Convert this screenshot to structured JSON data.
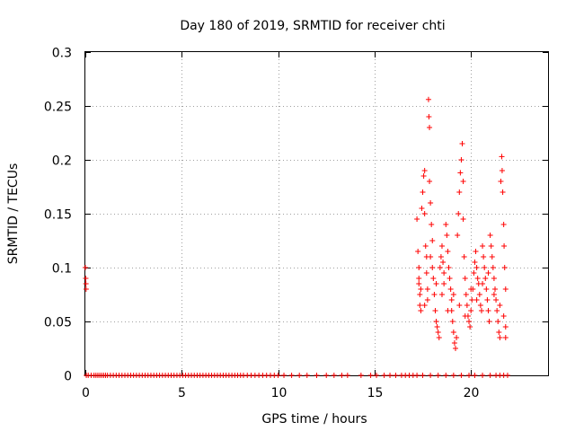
{
  "chart_data": {
    "type": "scatter",
    "title": "Day 180 of 2019, SRMTID for receiver chti",
    "xlabel": "GPS time / hours",
    "ylabel": "SRMTID / TECUs",
    "xlim": [
      0,
      24
    ],
    "ylim": [
      0,
      0.3
    ],
    "xticks": [
      0,
      5,
      10,
      15,
      20
    ],
    "xtick_labels": [
      "0",
      "5",
      "10",
      "15",
      "20"
    ],
    "yticks": [
      0,
      0.05,
      0.1,
      0.15,
      0.2,
      0.25,
      0.3
    ],
    "ytick_labels": [
      "0",
      "0.05",
      "0.1",
      "0.15",
      "0.2",
      "0.25",
      "0.3"
    ],
    "grid": true,
    "marker": "+",
    "color": "#ff0000",
    "series": [
      {
        "name": "SRMTID",
        "points": [
          [
            0.0,
            0.1
          ],
          [
            0.02,
            0.09
          ],
          [
            0.03,
            0.085
          ],
          [
            0.04,
            0.08
          ],
          [
            0.05,
            0.0
          ],
          [
            0.15,
            0.0
          ],
          [
            0.3,
            0.0
          ],
          [
            0.45,
            0.0
          ],
          [
            0.55,
            0.0
          ],
          [
            0.65,
            0.0
          ],
          [
            0.75,
            0.0
          ],
          [
            0.85,
            0.0
          ],
          [
            0.95,
            0.0
          ],
          [
            1.05,
            0.0
          ],
          [
            1.15,
            0.0
          ],
          [
            1.3,
            0.0
          ],
          [
            1.45,
            0.0
          ],
          [
            1.6,
            0.0
          ],
          [
            1.75,
            0.0
          ],
          [
            1.9,
            0.0
          ],
          [
            2.05,
            0.0
          ],
          [
            2.2,
            0.0
          ],
          [
            2.35,
            0.0
          ],
          [
            2.5,
            0.0
          ],
          [
            2.65,
            0.0
          ],
          [
            2.8,
            0.0
          ],
          [
            2.95,
            0.0
          ],
          [
            3.1,
            0.0
          ],
          [
            3.25,
            0.0
          ],
          [
            3.4,
            0.0
          ],
          [
            3.55,
            0.0
          ],
          [
            3.7,
            0.0
          ],
          [
            3.85,
            0.0
          ],
          [
            4.0,
            0.0
          ],
          [
            4.15,
            0.0
          ],
          [
            4.3,
            0.0
          ],
          [
            4.45,
            0.0
          ],
          [
            4.6,
            0.0
          ],
          [
            4.75,
            0.0
          ],
          [
            4.9,
            0.0
          ],
          [
            5.05,
            0.0
          ],
          [
            5.2,
            0.0
          ],
          [
            5.35,
            0.0
          ],
          [
            5.5,
            0.0
          ],
          [
            5.65,
            0.0
          ],
          [
            5.8,
            0.0
          ],
          [
            5.95,
            0.0
          ],
          [
            6.1,
            0.0
          ],
          [
            6.25,
            0.0
          ],
          [
            6.4,
            0.0
          ],
          [
            6.55,
            0.0
          ],
          [
            6.7,
            0.0
          ],
          [
            6.85,
            0.0
          ],
          [
            7.0,
            0.0
          ],
          [
            7.15,
            0.0
          ],
          [
            7.3,
            0.0
          ],
          [
            7.45,
            0.0
          ],
          [
            7.6,
            0.0
          ],
          [
            7.75,
            0.0
          ],
          [
            7.9,
            0.0
          ],
          [
            8.05,
            0.0
          ],
          [
            8.2,
            0.0
          ],
          [
            8.4,
            0.0
          ],
          [
            8.6,
            0.0
          ],
          [
            8.8,
            0.0
          ],
          [
            9.0,
            0.0
          ],
          [
            9.2,
            0.0
          ],
          [
            9.4,
            0.0
          ],
          [
            9.6,
            0.0
          ],
          [
            9.8,
            0.0
          ],
          [
            10.0,
            0.0
          ],
          [
            10.3,
            0.0
          ],
          [
            10.7,
            0.0
          ],
          [
            11.1,
            0.0
          ],
          [
            11.5,
            0.0
          ],
          [
            12.0,
            0.0
          ],
          [
            12.5,
            0.0
          ],
          [
            12.9,
            0.0
          ],
          [
            13.3,
            0.0
          ],
          [
            13.6,
            0.0
          ],
          [
            14.3,
            0.0
          ],
          [
            14.8,
            0.0
          ],
          [
            15.1,
            0.0
          ],
          [
            15.5,
            0.0
          ],
          [
            15.8,
            0.0
          ],
          [
            16.1,
            0.0
          ],
          [
            16.4,
            0.0
          ],
          [
            16.6,
            0.0
          ],
          [
            16.8,
            0.0
          ],
          [
            17.0,
            0.0
          ],
          [
            17.2,
            0.0
          ],
          [
            17.5,
            0.0
          ],
          [
            17.9,
            0.0
          ],
          [
            18.3,
            0.0
          ],
          [
            18.7,
            0.0
          ],
          [
            19.1,
            0.0
          ],
          [
            19.5,
            0.0
          ],
          [
            19.9,
            0.0
          ],
          [
            20.2,
            0.0
          ],
          [
            20.6,
            0.0
          ],
          [
            21.0,
            0.0
          ],
          [
            21.3,
            0.0
          ],
          [
            21.5,
            0.0
          ],
          [
            21.7,
            0.0
          ],
          [
            21.9,
            0.0
          ],
          [
            17.2,
            0.145
          ],
          [
            17.25,
            0.115
          ],
          [
            17.3,
            0.1
          ],
          [
            17.3,
            0.085
          ],
          [
            17.35,
            0.075
          ],
          [
            17.35,
            0.065
          ],
          [
            17.4,
            0.06
          ],
          [
            17.45,
            0.155
          ],
          [
            17.5,
            0.17
          ],
          [
            17.55,
            0.185
          ],
          [
            17.6,
            0.19
          ],
          [
            17.6,
            0.15
          ],
          [
            17.65,
            0.12
          ],
          [
            17.7,
            0.11
          ],
          [
            17.7,
            0.095
          ],
          [
            17.75,
            0.08
          ],
          [
            17.75,
            0.07
          ],
          [
            17.8,
            0.256
          ],
          [
            17.82,
            0.24
          ],
          [
            17.85,
            0.23
          ],
          [
            17.85,
            0.18
          ],
          [
            17.9,
            0.16
          ],
          [
            17.95,
            0.14
          ],
          [
            18.0,
            0.125
          ],
          [
            18.0,
            0.1
          ],
          [
            18.05,
            0.09
          ],
          [
            18.1,
            0.075
          ],
          [
            18.15,
            0.06
          ],
          [
            18.2,
            0.05
          ],
          [
            18.25,
            0.045
          ],
          [
            18.3,
            0.04
          ],
          [
            18.35,
            0.035
          ],
          [
            18.4,
            0.1
          ],
          [
            18.45,
            0.11
          ],
          [
            18.5,
            0.12
          ],
          [
            18.55,
            0.105
          ],
          [
            18.6,
            0.095
          ],
          [
            18.6,
            0.085
          ],
          [
            18.7,
            0.14
          ],
          [
            18.75,
            0.13
          ],
          [
            18.8,
            0.115
          ],
          [
            18.85,
            0.1
          ],
          [
            18.9,
            0.09
          ],
          [
            18.95,
            0.08
          ],
          [
            19.0,
            0.07
          ],
          [
            19.0,
            0.06
          ],
          [
            19.05,
            0.05
          ],
          [
            19.1,
            0.04
          ],
          [
            19.15,
            0.03
          ],
          [
            19.2,
            0.025
          ],
          [
            19.25,
            0.035
          ],
          [
            19.3,
            0.13
          ],
          [
            19.35,
            0.15
          ],
          [
            19.4,
            0.17
          ],
          [
            19.45,
            0.188
          ],
          [
            19.5,
            0.2
          ],
          [
            19.55,
            0.215
          ],
          [
            19.6,
            0.18
          ],
          [
            19.6,
            0.145
          ],
          [
            19.65,
            0.11
          ],
          [
            19.7,
            0.09
          ],
          [
            19.75,
            0.075
          ],
          [
            19.8,
            0.065
          ],
          [
            19.85,
            0.055
          ],
          [
            19.9,
            0.05
          ],
          [
            19.95,
            0.045
          ],
          [
            20.0,
            0.06
          ],
          [
            20.05,
            0.07
          ],
          [
            20.1,
            0.08
          ],
          [
            20.15,
            0.095
          ],
          [
            20.2,
            0.105
          ],
          [
            20.25,
            0.115
          ],
          [
            20.3,
            0.1
          ],
          [
            20.35,
            0.09
          ],
          [
            20.4,
            0.085
          ],
          [
            20.45,
            0.075
          ],
          [
            20.5,
            0.065
          ],
          [
            20.55,
            0.06
          ],
          [
            20.6,
            0.12
          ],
          [
            20.65,
            0.11
          ],
          [
            20.7,
            0.1
          ],
          [
            20.75,
            0.09
          ],
          [
            20.8,
            0.08
          ],
          [
            20.85,
            0.07
          ],
          [
            20.9,
            0.06
          ],
          [
            20.95,
            0.05
          ],
          [
            21.0,
            0.13
          ],
          [
            21.05,
            0.12
          ],
          [
            21.1,
            0.11
          ],
          [
            21.15,
            0.1
          ],
          [
            21.2,
            0.09
          ],
          [
            21.25,
            0.08
          ],
          [
            21.3,
            0.07
          ],
          [
            21.35,
            0.06
          ],
          [
            21.4,
            0.05
          ],
          [
            21.45,
            0.04
          ],
          [
            21.5,
            0.035
          ],
          [
            21.55,
            0.18
          ],
          [
            21.6,
            0.203
          ],
          [
            21.62,
            0.19
          ],
          [
            21.65,
            0.17
          ],
          [
            21.7,
            0.14
          ],
          [
            21.72,
            0.12
          ],
          [
            21.75,
            0.1
          ],
          [
            21.8,
            0.08
          ],
          [
            17.3,
            0.09
          ],
          [
            17.4,
            0.08
          ],
          [
            17.6,
            0.065
          ],
          [
            17.9,
            0.11
          ],
          [
            18.2,
            0.085
          ],
          [
            18.5,
            0.075
          ],
          [
            18.8,
            0.06
          ],
          [
            19.1,
            0.075
          ],
          [
            19.4,
            0.065
          ],
          [
            19.7,
            0.055
          ],
          [
            20.0,
            0.08
          ],
          [
            20.3,
            0.07
          ],
          [
            20.6,
            0.085
          ],
          [
            20.9,
            0.095
          ],
          [
            21.2,
            0.075
          ],
          [
            21.5,
            0.065
          ],
          [
            21.7,
            0.055
          ],
          [
            21.8,
            0.045
          ],
          [
            21.8,
            0.035
          ]
        ]
      }
    ]
  }
}
